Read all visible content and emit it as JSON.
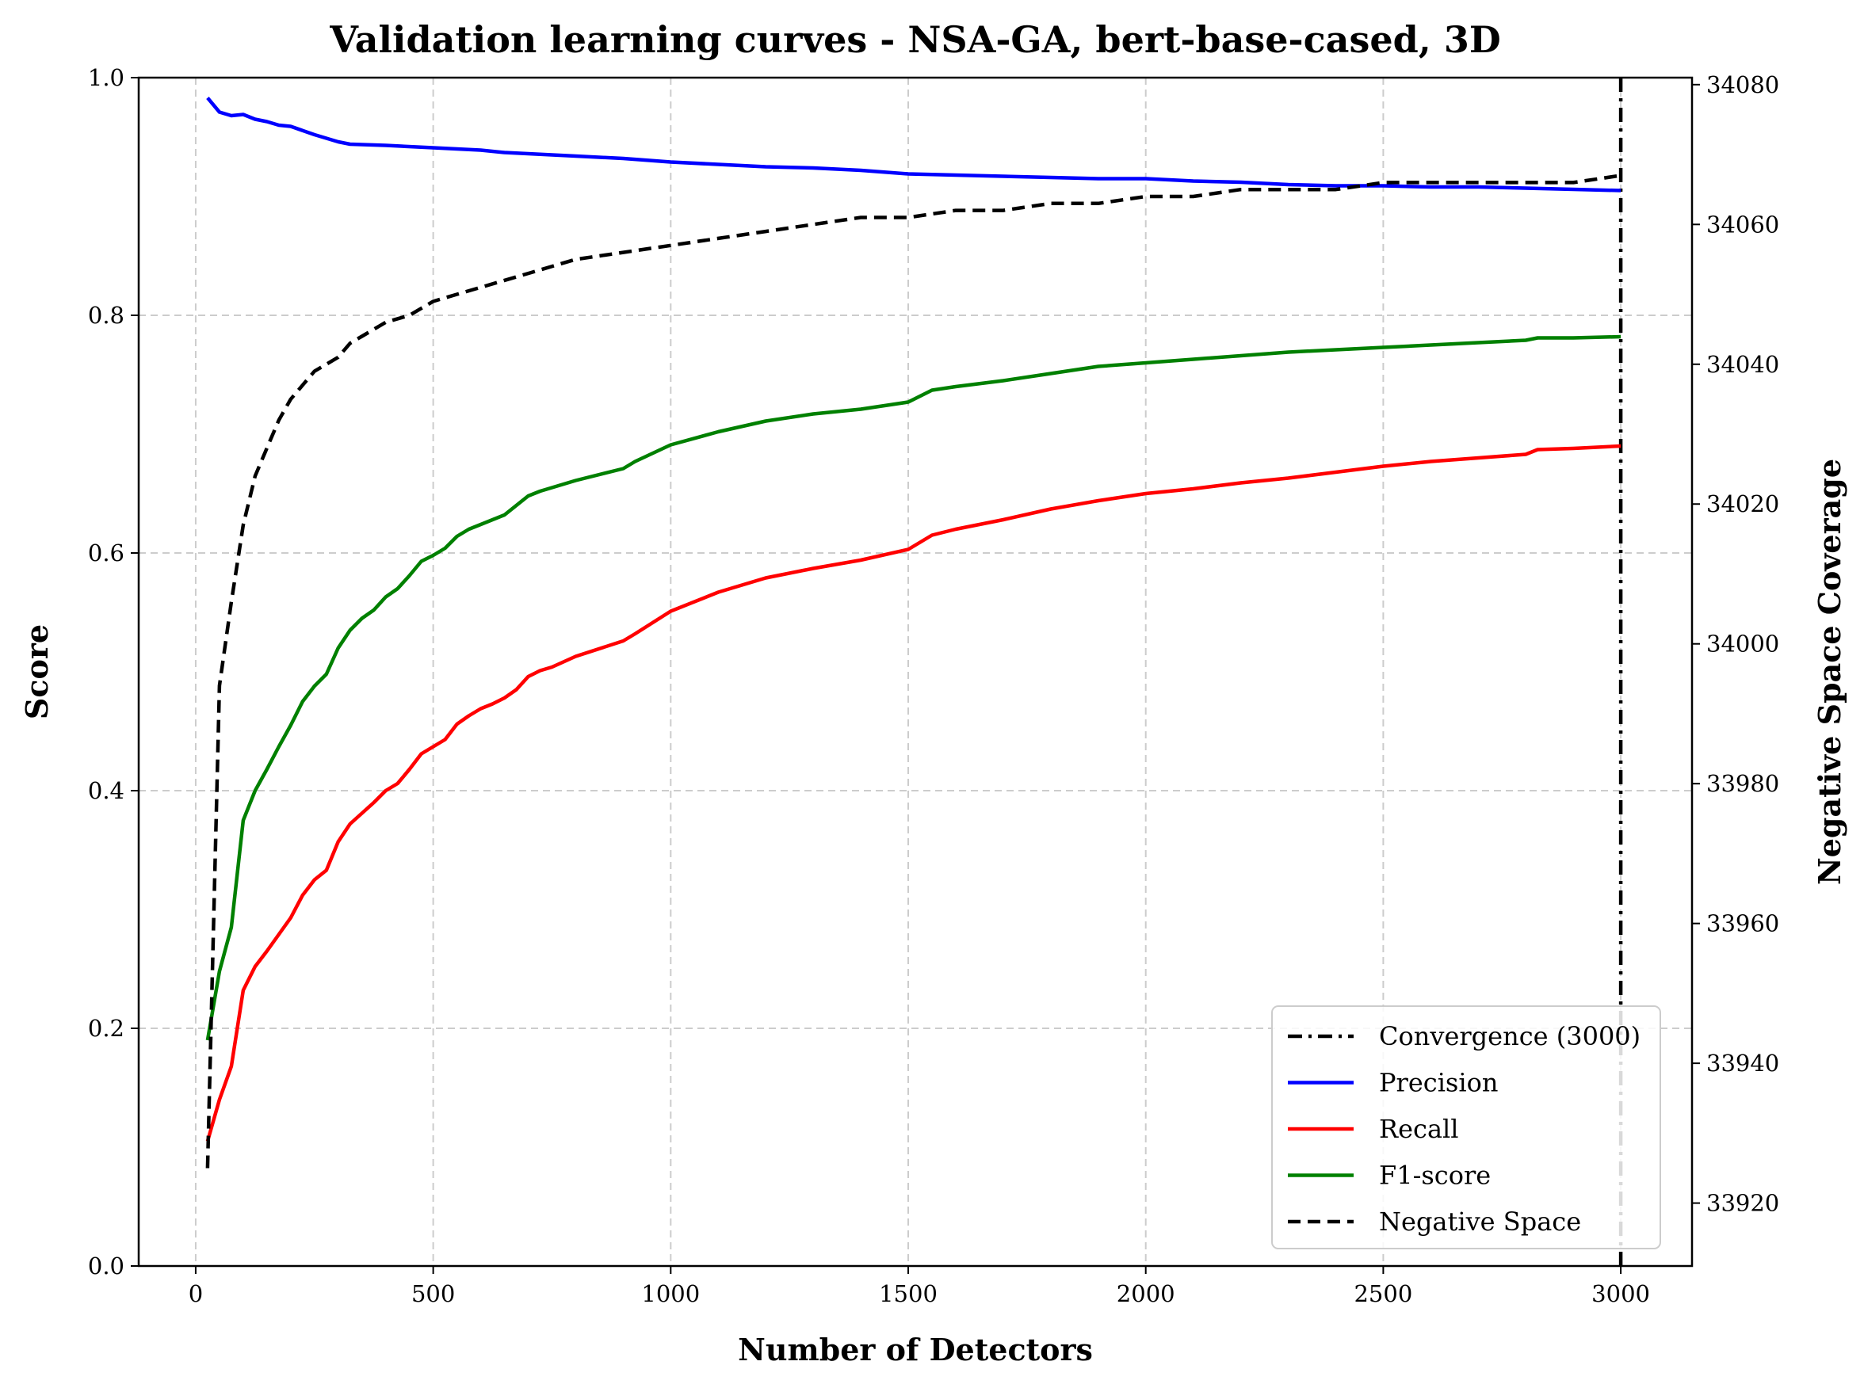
{
  "chart_data": {
    "type": "line",
    "title": "Validation learning curves - NSA-GA, bert-base-cased, 3D",
    "xlabel": "Number of Detectors",
    "ylabel": "Score",
    "y2label": "Negative Space Coverage",
    "xlim": [
      -120,
      3150
    ],
    "ylim": [
      0.0,
      1.0
    ],
    "y2lim": [
      33911,
      34081
    ],
    "xticks": [
      0,
      500,
      1000,
      1500,
      2000,
      2500,
      3000
    ],
    "yticks": [
      0.0,
      0.2,
      0.4,
      0.6,
      0.8,
      1.0
    ],
    "y2ticks": [
      33920,
      33940,
      33960,
      33980,
      34000,
      34020,
      34040,
      34060,
      34080
    ],
    "grid": true,
    "legend_position": "lower-right",
    "convergence": {
      "name": "Convergence (3000)",
      "x": 3000,
      "color": "#000000",
      "style": "dashdot"
    },
    "series": [
      {
        "name": "Precision",
        "axis": "left",
        "color": "#0000ff",
        "style": "solid",
        "x": [
          25,
          50,
          75,
          100,
          125,
          150,
          175,
          200,
          250,
          300,
          325,
          400,
          500,
          550,
          600,
          650,
          700,
          800,
          900,
          1000,
          1100,
          1200,
          1300,
          1400,
          1500,
          1600,
          1700,
          1800,
          1900,
          2000,
          2100,
          2200,
          2300,
          2400,
          2500,
          2600,
          2700,
          2800,
          2900,
          3000
        ],
        "values": [
          0.983,
          0.971,
          0.968,
          0.969,
          0.965,
          0.963,
          0.96,
          0.959,
          0.952,
          0.946,
          0.944,
          0.943,
          0.941,
          0.94,
          0.939,
          0.937,
          0.936,
          0.934,
          0.932,
          0.929,
          0.927,
          0.925,
          0.924,
          0.922,
          0.919,
          0.918,
          0.917,
          0.916,
          0.915,
          0.915,
          0.913,
          0.912,
          0.91,
          0.909,
          0.909,
          0.908,
          0.908,
          0.907,
          0.906,
          0.905
        ]
      },
      {
        "name": "Recall",
        "axis": "left",
        "color": "#ff0000",
        "style": "solid",
        "x": [
          25,
          50,
          75,
          100,
          125,
          150,
          200,
          225,
          250,
          275,
          300,
          325,
          350,
          375,
          400,
          425,
          450,
          475,
          500,
          525,
          550,
          575,
          600,
          625,
          650,
          675,
          700,
          725,
          750,
          800,
          900,
          925,
          1000,
          1100,
          1200,
          1300,
          1400,
          1500,
          1550,
          1600,
          1700,
          1800,
          1900,
          2000,
          2100,
          2200,
          2300,
          2400,
          2500,
          2600,
          2700,
          2800,
          2825,
          2900,
          3000
        ],
        "values": [
          0.105,
          0.14,
          0.168,
          0.232,
          0.252,
          0.265,
          0.293,
          0.312,
          0.325,
          0.333,
          0.357,
          0.372,
          0.381,
          0.39,
          0.4,
          0.406,
          0.418,
          0.431,
          0.437,
          0.443,
          0.456,
          0.463,
          0.469,
          0.473,
          0.478,
          0.485,
          0.496,
          0.501,
          0.504,
          0.513,
          0.526,
          0.532,
          0.551,
          0.567,
          0.579,
          0.587,
          0.594,
          0.603,
          0.615,
          0.62,
          0.628,
          0.637,
          0.644,
          0.65,
          0.654,
          0.659,
          0.663,
          0.668,
          0.673,
          0.677,
          0.68,
          0.683,
          0.687,
          0.688,
          0.69
        ]
      },
      {
        "name": "F1-score",
        "axis": "left",
        "color": "#008000",
        "style": "solid",
        "x": [
          25,
          50,
          75,
          100,
          125,
          150,
          175,
          200,
          225,
          250,
          275,
          300,
          325,
          350,
          375,
          400,
          425,
          450,
          475,
          500,
          525,
          550,
          575,
          600,
          650,
          700,
          725,
          800,
          900,
          925,
          1000,
          1100,
          1200,
          1300,
          1400,
          1500,
          1550,
          1600,
          1700,
          1800,
          1900,
          2000,
          2100,
          2200,
          2300,
          2400,
          2500,
          2600,
          2700,
          2800,
          2825,
          2900,
          3000
        ],
        "values": [
          0.19,
          0.248,
          0.285,
          0.375,
          0.4,
          0.418,
          0.437,
          0.455,
          0.475,
          0.488,
          0.498,
          0.52,
          0.535,
          0.545,
          0.552,
          0.563,
          0.57,
          0.581,
          0.593,
          0.598,
          0.604,
          0.614,
          0.62,
          0.624,
          0.632,
          0.648,
          0.652,
          0.661,
          0.671,
          0.677,
          0.691,
          0.702,
          0.711,
          0.717,
          0.721,
          0.727,
          0.737,
          0.74,
          0.745,
          0.751,
          0.757,
          0.76,
          0.763,
          0.766,
          0.769,
          0.771,
          0.773,
          0.775,
          0.777,
          0.779,
          0.781,
          0.781,
          0.782
        ]
      },
      {
        "name": "Negative Space",
        "axis": "right",
        "color": "#000000",
        "style": "dashed",
        "x": [
          25,
          50,
          75,
          100,
          125,
          150,
          175,
          200,
          225,
          250,
          275,
          300,
          325,
          350,
          400,
          450,
          500,
          550,
          600,
          700,
          800,
          900,
          1000,
          1100,
          1200,
          1300,
          1400,
          1500,
          1600,
          1700,
          1800,
          1900,
          2000,
          2100,
          2200,
          2300,
          2400,
          2500,
          2600,
          2700,
          2800,
          2900,
          3000
        ],
        "values": [
          33925,
          33994,
          34006,
          34017,
          34024,
          34028,
          34032,
          34035,
          34037,
          34039,
          34040,
          34041,
          34043,
          34044,
          34046,
          34047,
          34049,
          34050,
          34051,
          34053,
          34055,
          34056,
          34057,
          34058,
          34059,
          34060,
          34061,
          34061,
          34062,
          34062,
          34063,
          34063,
          34064,
          34064,
          34065,
          34065,
          34065,
          34066,
          34066,
          34066,
          34066,
          34066,
          34067
        ]
      }
    ]
  }
}
